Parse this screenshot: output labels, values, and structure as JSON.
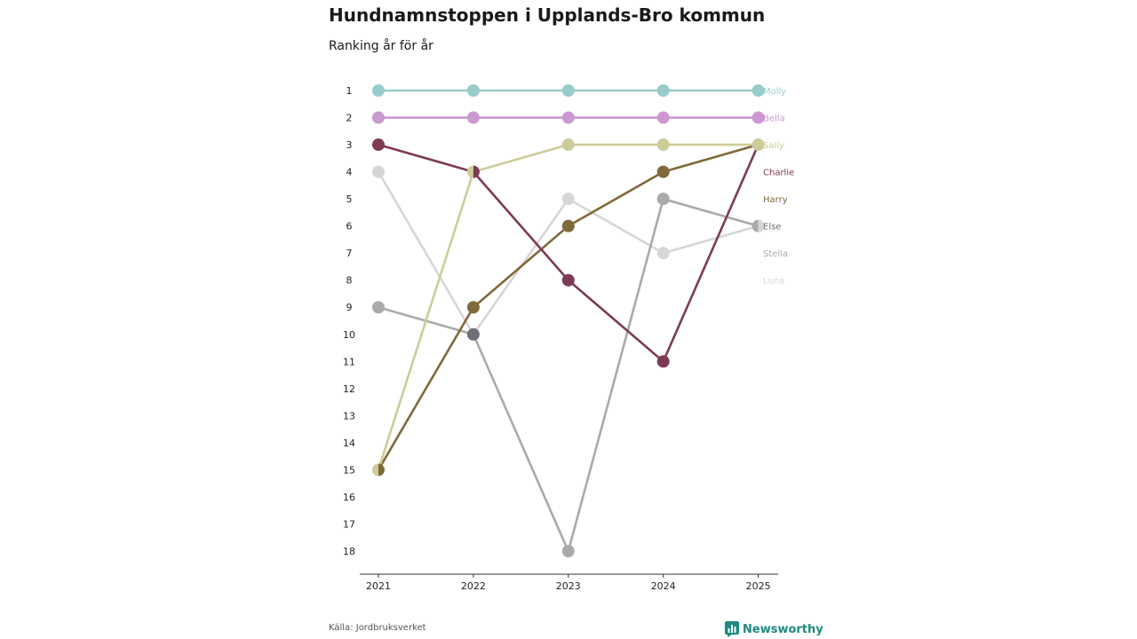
{
  "title": "Hundnamnstoppen i Upplands-Bro kommun",
  "subtitle": "Ranking år för år",
  "source": "Källa: Jordbruksverket",
  "brand": "Newsworthy",
  "brand_color": "#1e8a80",
  "chart_data": {
    "type": "line",
    "chart_subtype": "bump",
    "title": "Hundnamnstoppen i Upplands-Bro kommun",
    "subtitle": "Ranking år för år",
    "xlabel": "",
    "ylabel": "",
    "x": [
      "2021",
      "2022",
      "2023",
      "2024",
      "2025"
    ],
    "y_ticks": [
      "1",
      "2",
      "3",
      "4",
      "5",
      "6",
      "7",
      "8",
      "9",
      "10",
      "11",
      "12",
      "13",
      "14",
      "15",
      "16",
      "17",
      "18"
    ],
    "ylim": [
      1,
      18
    ],
    "y_inverted": true,
    "series": [
      {
        "name": "Luna",
        "color": "#d6d6d6",
        "values": [
          4,
          10,
          5,
          7,
          6
        ]
      },
      {
        "name": "Stella",
        "color": "#aaaaaa",
        "values": [
          9,
          10,
          18,
          5,
          6
        ]
      },
      {
        "name": "Else",
        "color": "#6e6e78",
        "values": [
          null,
          10,
          null,
          null,
          3
        ]
      },
      {
        "name": "Harry",
        "color": "#80693a",
        "values": [
          15,
          9,
          6,
          4,
          3
        ]
      },
      {
        "name": "Charlie",
        "color": "#7e3a55",
        "values": [
          3,
          4,
          8,
          11,
          3
        ]
      },
      {
        "name": "Sally",
        "color": "#cdcc98",
        "values": [
          15,
          4,
          3,
          3,
          3
        ]
      },
      {
        "name": "Bella",
        "color": "#cc98d0",
        "values": [
          2,
          2,
          2,
          2,
          2
        ]
      },
      {
        "name": "Molly",
        "color": "#98cccb",
        "values": [
          1,
          1,
          1,
          1,
          1
        ]
      }
    ],
    "end_labels": [
      {
        "name": "Molly",
        "rank": 1
      },
      {
        "name": "Bella",
        "rank": 2
      },
      {
        "name": "Sally",
        "rank": 3
      },
      {
        "name": "Charlie",
        "rank": 4
      },
      {
        "name": "Harry",
        "rank": 5
      },
      {
        "name": "Else",
        "rank": 6
      },
      {
        "name": "Stella",
        "rank": 7
      },
      {
        "name": "Luna",
        "rank": 8
      }
    ]
  }
}
